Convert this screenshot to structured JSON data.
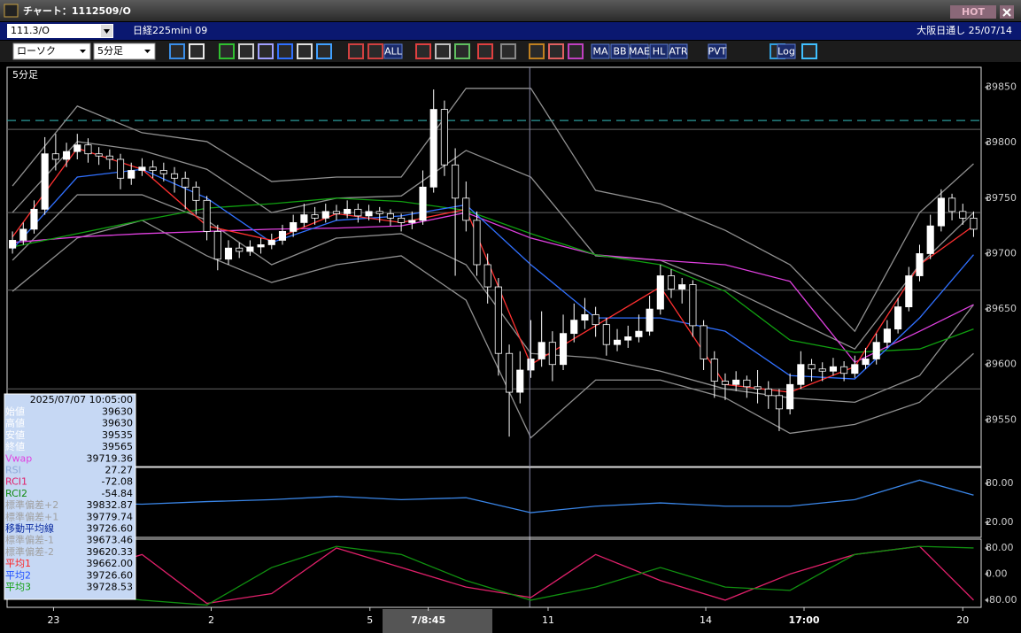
{
  "window": {
    "title": "チャート：1112509/O",
    "hot": "HOT",
    "code": "111.3/O",
    "instrument": "日経225mini 09",
    "market": "大阪日通し 25/07/14"
  },
  "toolbar": {
    "selects": [
      "ローソク",
      "5分足"
    ],
    "buttons": [
      "ALL",
      "MA",
      "BB",
      "MAE",
      "HL",
      "ATR",
      "PVT",
      "Log"
    ]
  },
  "info_panel": {
    "datetime": "2025/07/07 10:05:00",
    "rows": [
      {
        "label": "始値",
        "value": "39630",
        "color": "#ffffff"
      },
      {
        "label": "高値",
        "value": "39630",
        "color": "#ffffff"
      },
      {
        "label": "安値",
        "value": "39535",
        "color": "#ffffff"
      },
      {
        "label": "終値",
        "value": "39565",
        "color": "#ffffff"
      },
      {
        "label": "Vwap",
        "value": "39719.36",
        "color": "#e040e0"
      },
      {
        "label": "RSI",
        "value": "27.27",
        "color": "#8fa8d8"
      },
      {
        "label": "RCI1",
        "value": "-72.08",
        "color": "#e0206a"
      },
      {
        "label": "RCI2",
        "value": "-54.84",
        "color": "#108a10"
      },
      {
        "label": "標準偏差+2",
        "value": "39832.87",
        "color": "#a0a0a0"
      },
      {
        "label": "標準偏差+1",
        "value": "39779.74",
        "color": "#a0a0a0"
      },
      {
        "label": "移動平均線",
        "value": "39726.60",
        "color": "#0a2aa0"
      },
      {
        "label": "標準偏差-1",
        "value": "39673.46",
        "color": "#a0a0a0"
      },
      {
        "label": "標準偏差-2",
        "value": "39620.33",
        "color": "#a0a0a0"
      },
      {
        "label": "平均1",
        "value": "39662.00",
        "color": "#ff2020"
      },
      {
        "label": "平均2",
        "value": "39726.60",
        "color": "#2050ff"
      },
      {
        "label": "平均3",
        "value": "39728.53",
        "color": "#10a010"
      }
    ]
  },
  "chart_data": [
    {
      "type": "candlestick",
      "title": "5分足",
      "xlim": [
        -0.5,
        89.7
      ],
      "xticks": [
        {
          "value": 3.8,
          "label": "23"
        },
        {
          "value": 18.4,
          "label": "2"
        },
        {
          "value": 33.1,
          "label": "5"
        },
        {
          "value": 38.5,
          "label": "7/8:45"
        },
        {
          "value": 49.6,
          "label": "11"
        },
        {
          "value": 64.2,
          "label": "14"
        },
        {
          "value": 73.3,
          "label": "17:00"
        },
        {
          "value": 88,
          "label": "20"
        }
      ],
      "ylim": [
        39508,
        39868
      ],
      "yticks": [
        39550,
        39600,
        39650,
        39700,
        39750,
        39800,
        39850
      ],
      "levels": [
        39812,
        39737,
        39667,
        39578
      ],
      "reference_line": 39820,
      "crosshair_x": 47.9,
      "up_color": "#ffffff",
      "down_color": "#000000",
      "candles": [
        [
          39705,
          39720,
          39700,
          39712
        ],
        [
          39712,
          39728,
          39708,
          39722
        ],
        [
          39722,
          39748,
          39718,
          39740
        ],
        [
          39740,
          39805,
          39735,
          39790
        ],
        [
          39790,
          39808,
          39775,
          39785
        ],
        [
          39785,
          39800,
          39778,
          39792
        ],
        [
          39792,
          39808,
          39785,
          39798
        ],
        [
          39798,
          39804,
          39782,
          39790
        ],
        [
          39790,
          39796,
          39780,
          39788
        ],
        [
          39788,
          39794,
          39776,
          39785
        ],
        [
          39785,
          39790,
          39758,
          39768
        ],
        [
          39768,
          39782,
          39762,
          39775
        ],
        [
          39775,
          39786,
          39770,
          39778
        ],
        [
          39778,
          39784,
          39768,
          39775
        ],
        [
          39775,
          39782,
          39765,
          39772
        ],
        [
          39772,
          39778,
          39755,
          39768
        ],
        [
          39768,
          39774,
          39740,
          39760
        ],
        [
          39760,
          39765,
          39735,
          39748
        ],
        [
          39748,
          39752,
          39712,
          39720
        ],
        [
          39720,
          39726,
          39685,
          39695
        ],
        [
          39695,
          39712,
          39690,
          39705
        ],
        [
          39705,
          39710,
          39696,
          39702
        ],
        [
          39702,
          39712,
          39698,
          39706
        ],
        [
          39706,
          39714,
          39700,
          39708
        ],
        [
          39708,
          39718,
          39704,
          39712
        ],
        [
          39712,
          39726,
          39708,
          39720
        ],
        [
          39720,
          39735,
          39715,
          39728
        ],
        [
          39728,
          39745,
          39724,
          39735
        ],
        [
          39735,
          39742,
          39726,
          39732
        ],
        [
          39732,
          39745,
          39728,
          39738
        ],
        [
          39738,
          39744,
          39730,
          39736
        ],
        [
          39736,
          39748,
          39732,
          39740
        ],
        [
          39740,
          39745,
          39728,
          39734
        ],
        [
          39734,
          39744,
          39730,
          39738
        ],
        [
          39738,
          39742,
          39728,
          39736
        ],
        [
          39736,
          39740,
          39725,
          39732
        ],
        [
          39732,
          39736,
          39720,
          39728
        ],
        [
          39728,
          39738,
          39722,
          39730
        ],
        [
          39730,
          39775,
          39726,
          39760
        ],
        [
          39760,
          39848,
          39755,
          39830
        ],
        [
          39830,
          39838,
          39770,
          39780
        ],
        [
          39780,
          39795,
          39680,
          39750
        ],
        [
          39750,
          39765,
          39720,
          39730
        ],
        [
          39730,
          39738,
          39680,
          39690
        ],
        [
          39690,
          39700,
          39655,
          39670
        ],
        [
          39670,
          39678,
          39590,
          39610
        ],
        [
          39610,
          39618,
          39535,
          39575
        ],
        [
          39575,
          39612,
          39565,
          39595
        ],
        [
          39595,
          39640,
          39588,
          39605
        ],
        [
          39605,
          39648,
          39598,
          39620
        ],
        [
          39620,
          39630,
          39585,
          39600
        ],
        [
          39600,
          39645,
          39595,
          39628
        ],
        [
          39628,
          39655,
          39620,
          39640
        ],
        [
          39640,
          39660,
          39632,
          39645
        ],
        [
          39645,
          39652,
          39625,
          39636
        ],
        [
          39636,
          39642,
          39608,
          39618
        ],
        [
          39618,
          39632,
          39612,
          39622
        ],
        [
          39622,
          39635,
          39615,
          39625
        ],
        [
          39625,
          39645,
          39620,
          39630
        ],
        [
          39630,
          39662,
          39626,
          39650
        ],
        [
          39650,
          39690,
          39645,
          39680
        ],
        [
          39680,
          39686,
          39660,
          39668
        ],
        [
          39668,
          39678,
          39655,
          39672
        ],
        [
          39672,
          39676,
          39625,
          39635
        ],
        [
          39635,
          39640,
          39595,
          39605
        ],
        [
          39605,
          39612,
          39570,
          39585
        ],
        [
          39585,
          39592,
          39568,
          39582
        ],
        [
          39582,
          39594,
          39576,
          39586
        ],
        [
          39586,
          39590,
          39570,
          39580
        ],
        [
          39580,
          39595,
          39565,
          39578
        ],
        [
          39578,
          39585,
          39560,
          39572
        ],
        [
          39572,
          39578,
          39540,
          39560
        ],
        [
          39560,
          39592,
          39555,
          39582
        ],
        [
          39582,
          39612,
          39578,
          39600
        ],
        [
          39600,
          39605,
          39585,
          39596
        ],
        [
          39596,
          39602,
          39585,
          39594
        ],
        [
          39594,
          39606,
          39590,
          39598
        ],
        [
          39598,
          39603,
          39585,
          39592
        ],
        [
          39592,
          39608,
          39588,
          39600
        ],
        [
          39600,
          39615,
          39596,
          39605
        ],
        [
          39605,
          39628,
          39600,
          39620
        ],
        [
          39620,
          39640,
          39615,
          39632
        ],
        [
          39632,
          39660,
          39628,
          39652
        ],
        [
          39652,
          39688,
          39648,
          39680
        ],
        [
          39680,
          39708,
          39675,
          39700
        ],
        [
          39700,
          39735,
          39695,
          39725
        ],
        [
          39725,
          39758,
          39720,
          39750
        ],
        [
          39750,
          39754,
          39730,
          39738
        ],
        [
          39738,
          39745,
          39726,
          39732
        ],
        [
          39732,
          39738,
          39715,
          39722
        ]
      ],
      "x": [
        0,
        6,
        12,
        18,
        24,
        30,
        36,
        42,
        48,
        54,
        60,
        66,
        72,
        78,
        84,
        89
      ],
      "series": [
        {
          "color": "#909090",
          "values": [
            39761,
            39833,
            39809,
            39801,
            39765,
            39769,
            39769,
            39849,
            39849,
            39757,
            39745,
            39721,
            39690,
            39630,
            39737,
            39781
          ]
        },
        {
          "color": "#909090",
          "values": [
            39737,
            39801,
            39793,
            39776,
            39737,
            39750,
            39752,
            39793,
            39769,
            39698,
            39694,
            39670,
            39642,
            39614,
            39690,
            39737
          ]
        },
        {
          "color": "#909090",
          "values": [
            39694,
            39753,
            39753,
            39730,
            39690,
            39714,
            39718,
            39690,
            39610,
            39606,
            39594,
            39578,
            39570,
            39566,
            39590,
            39654
          ]
        },
        {
          "color": "#909090",
          "values": [
            39666,
            39714,
            39730,
            39698,
            39674,
            39690,
            39698,
            39658,
            39534,
            39586,
            39586,
            39570,
            39538,
            39546,
            39566,
            39610
          ]
        },
        {
          "color": "#e040e0",
          "values": [
            39710,
            39715,
            39718,
            39720,
            39722,
            39723,
            39725,
            39737,
            39714,
            39699,
            39694,
            39690,
            39675,
            39602,
            39630,
            39654
          ]
        },
        {
          "color": "#10a010",
          "values": [
            39706,
            39718,
            39730,
            39741,
            39745,
            39750,
            39747,
            39739,
            39718,
            39699,
            39690,
            39666,
            39622,
            39611,
            39614,
            39632
          ]
        },
        {
          "color": "#3070ff",
          "values": [
            39704,
            39769,
            39776,
            39750,
            39710,
            39730,
            39734,
            39744,
            39690,
            39642,
            39642,
            39630,
            39590,
            39587,
            39642,
            39699
          ]
        },
        {
          "color": "#ff3030",
          "values": [
            39715,
            39795,
            39776,
            39725,
            39712,
            39736,
            39728,
            39740,
            39600,
            39635,
            39670,
            39582,
            39575,
            39598,
            39690,
            39725
          ]
        }
      ]
    },
    {
      "type": "line",
      "xlim": [
        -0.5,
        89.7
      ],
      "ylim": [
        -3,
        104.5
      ],
      "yticks": [
        {
          "value": 80,
          "label": "80.00"
        },
        {
          "value": 20,
          "label": "20.00"
        }
      ],
      "x": [
        0,
        6,
        12,
        18,
        24,
        30,
        36,
        42,
        48,
        54,
        60,
        66,
        72,
        78,
        84,
        89
      ],
      "series": [
        {
          "color": "#3a86e8",
          "values": [
            40,
            50,
            48,
            52,
            55,
            60,
            55,
            58,
            35,
            45,
            50,
            45,
            45,
            55,
            85,
            62
          ]
        }
      ]
    },
    {
      "type": "line",
      "xlim": [
        -0.5,
        89.7
      ],
      "ylim": [
        -102,
        107
      ],
      "yticks": [
        {
          "value": 80,
          "label": "80.00"
        },
        {
          "value": 0,
          "label": "0.00"
        },
        {
          "value": -80,
          "label": "-80.00"
        }
      ],
      "x": [
        0,
        6,
        12,
        18,
        24,
        30,
        36,
        42,
        48,
        54,
        60,
        66,
        72,
        78,
        84,
        89
      ],
      "series": [
        {
          "color": "#e0206a",
          "values": [
            40,
            0,
            60,
            -90,
            -60,
            80,
            20,
            -40,
            -72,
            60,
            -20,
            -80,
            0,
            60,
            85,
            -80
          ]
        },
        {
          "color": "#109010",
          "values": [
            -40,
            -60,
            -80,
            -95,
            20,
            85,
            60,
            -20,
            -80,
            -40,
            20,
            -40,
            -50,
            60,
            85,
            80
          ]
        }
      ]
    }
  ]
}
